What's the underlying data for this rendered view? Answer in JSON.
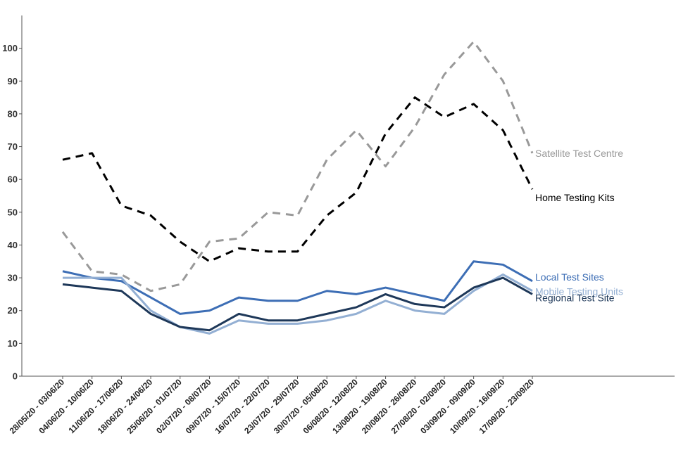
{
  "chart_data": {
    "type": "line",
    "title": "",
    "xlabel": "",
    "ylabel": "",
    "ylim": [
      0,
      110
    ],
    "yticks": [
      0,
      10,
      20,
      30,
      40,
      50,
      60,
      70,
      80,
      90,
      100
    ],
    "grid": false,
    "legend": "inline labels at end of each line",
    "categories": [
      "28/05/20 - 03/06/20",
      "04/06/20 - 10/06/20",
      "11/06/20 - 17/06/20",
      "18/06/20 - 24/06/20",
      "25/06/20 - 01/07/20",
      "02/07/20 - 08/07/20",
      "09/07/20 - 15/07/20",
      "16/07/20 - 22/07/20",
      "23/07/20 - 29/07/20",
      "30/07/20 - 05/08/20",
      "06/08/20 - 12/08/20",
      "13/08/20 - 19/08/20",
      "20/08/20 - 26/08/20",
      "27/08/20 - 02/09/20",
      "03/09/20 - 09/09/20",
      "10/09/20 - 16/09/20",
      "17/09/20 - 23/09/20"
    ],
    "series": [
      {
        "name": "Satellite Test Centre",
        "color": "#999999",
        "dash": true,
        "values": [
          44,
          32,
          31,
          26,
          28,
          41,
          42,
          50,
          49,
          66,
          75,
          64,
          76,
          92,
          102,
          90,
          68
        ]
      },
      {
        "name": "Home Testing Kits",
        "color": "#000000",
        "dash": true,
        "values": [
          66,
          68,
          52,
          49,
          41,
          35,
          39,
          38,
          38,
          49,
          56,
          74,
          85,
          79,
          83,
          75,
          57
        ]
      },
      {
        "name": "Local Test Sites",
        "color": "#3d6eb5",
        "dash": false,
        "values": [
          32,
          30,
          29,
          24,
          19,
          20,
          24,
          23,
          23,
          26,
          25,
          27,
          25,
          23,
          35,
          34,
          29
        ]
      },
      {
        "name": "Mobile Testing Units",
        "color": "#93afd3",
        "dash": false,
        "values": [
          30,
          30,
          30,
          20,
          15,
          13,
          17,
          16,
          16,
          17,
          19,
          23,
          20,
          19,
          26,
          31,
          26
        ]
      },
      {
        "name": "Regional Test Site",
        "color": "#1e3859",
        "dash": false,
        "values": [
          28,
          27,
          26,
          19,
          15,
          14,
          19,
          17,
          17,
          19,
          21,
          25,
          22,
          21,
          27,
          30,
          25
        ]
      }
    ]
  }
}
